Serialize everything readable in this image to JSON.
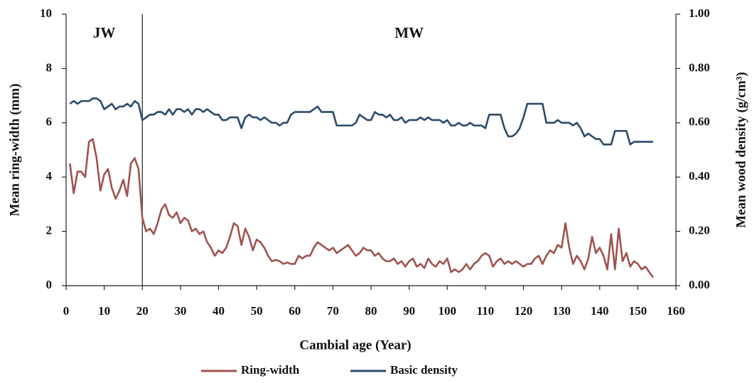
{
  "chart_data": {
    "type": "line",
    "xlabel": "Cambial age (Year)",
    "ylabel": "Mean ring-width (mm)",
    "y2label": "Mean wood density (g/cm³)",
    "annotations": [
      "JW",
      "MW"
    ],
    "vline": 20,
    "x": [
      1,
      2,
      3,
      4,
      5,
      6,
      7,
      8,
      9,
      10,
      11,
      12,
      13,
      14,
      15,
      16,
      17,
      18,
      19,
      20,
      21,
      22,
      23,
      24,
      25,
      26,
      27,
      28,
      29,
      30,
      31,
      32,
      33,
      34,
      35,
      36,
      37,
      38,
      39,
      40,
      41,
      42,
      43,
      44,
      45,
      46,
      47,
      48,
      49,
      50,
      51,
      52,
      53,
      54,
      55,
      56,
      57,
      58,
      59,
      60,
      61,
      62,
      63,
      64,
      65,
      66,
      67,
      68,
      69,
      70,
      71,
      72,
      73,
      74,
      75,
      76,
      77,
      78,
      79,
      80,
      81,
      82,
      83,
      84,
      85,
      86,
      87,
      88,
      89,
      90,
      91,
      92,
      93,
      94,
      95,
      96,
      97,
      98,
      99,
      100,
      101,
      102,
      103,
      104,
      105,
      106,
      107,
      108,
      109,
      110,
      111,
      112,
      113,
      114,
      115,
      116,
      117,
      118,
      119,
      120,
      121,
      122,
      123,
      124,
      125,
      126,
      127,
      128,
      129,
      130,
      131,
      132,
      133,
      134,
      135,
      136,
      137,
      138,
      139,
      140,
      141,
      142,
      143,
      144,
      145,
      146,
      147,
      148,
      149,
      150,
      151,
      152,
      153,
      154
    ],
    "series": [
      {
        "name": "Ring-width",
        "color": "#a0524f",
        "values": [
          4.5,
          3.4,
          4.2,
          4.2,
          4.0,
          5.3,
          5.4,
          4.7,
          3.5,
          4.1,
          4.3,
          3.6,
          3.2,
          3.5,
          3.9,
          3.3,
          4.5,
          4.7,
          4.3,
          2.5,
          2.0,
          2.1,
          1.9,
          2.3,
          2.8,
          3.0,
          2.6,
          2.5,
          2.7,
          2.3,
          2.5,
          2.4,
          2.0,
          2.1,
          1.9,
          2.0,
          1.6,
          1.4,
          1.1,
          1.3,
          1.2,
          1.4,
          1.8,
          2.3,
          2.2,
          1.5,
          2.1,
          1.8,
          1.3,
          1.7,
          1.6,
          1.4,
          1.1,
          0.9,
          0.95,
          0.9,
          0.8,
          0.85,
          0.8,
          0.8,
          1.1,
          1.0,
          1.1,
          1.1,
          1.4,
          1.6,
          1.5,
          1.4,
          1.3,
          1.4,
          1.2,
          1.3,
          1.4,
          1.5,
          1.3,
          1.1,
          1.2,
          1.4,
          1.3,
          1.3,
          1.1,
          1.2,
          1.0,
          0.9,
          0.9,
          1.0,
          0.8,
          0.9,
          0.7,
          0.9,
          1.0,
          0.7,
          0.8,
          0.65,
          1.0,
          0.8,
          0.7,
          0.9,
          0.8,
          1.0,
          0.5,
          0.6,
          0.5,
          0.6,
          0.8,
          0.6,
          0.8,
          0.9,
          1.1,
          1.2,
          1.1,
          0.7,
          0.9,
          1.0,
          0.8,
          0.9,
          0.8,
          0.9,
          0.8,
          0.7,
          0.8,
          0.8,
          1.0,
          1.1,
          0.8,
          1.1,
          1.3,
          1.2,
          1.5,
          1.4,
          2.3,
          1.4,
          0.8,
          1.1,
          0.9,
          0.6,
          1.0,
          1.8,
          1.2,
          1.4,
          1.1,
          0.6,
          1.9,
          0.6,
          2.1,
          0.9,
          1.2,
          0.7,
          0.9,
          0.8,
          0.6,
          0.7,
          0.5,
          0.3
        ]
      },
      {
        "name": "Basic density",
        "color": "#2b4a6b",
        "axis": "y2",
        "values": [
          0.67,
          0.68,
          0.67,
          0.68,
          0.68,
          0.68,
          0.69,
          0.69,
          0.68,
          0.65,
          0.66,
          0.67,
          0.65,
          0.66,
          0.66,
          0.67,
          0.66,
          0.68,
          0.67,
          0.61,
          0.62,
          0.63,
          0.63,
          0.64,
          0.64,
          0.63,
          0.65,
          0.63,
          0.65,
          0.65,
          0.64,
          0.65,
          0.63,
          0.65,
          0.65,
          0.64,
          0.65,
          0.64,
          0.63,
          0.63,
          0.61,
          0.61,
          0.62,
          0.62,
          0.62,
          0.58,
          0.62,
          0.63,
          0.62,
          0.62,
          0.61,
          0.62,
          0.61,
          0.6,
          0.6,
          0.59,
          0.6,
          0.6,
          0.63,
          0.64,
          0.64,
          0.64,
          0.64,
          0.64,
          0.65,
          0.66,
          0.64,
          0.64,
          0.64,
          0.64,
          0.59,
          0.59,
          0.59,
          0.59,
          0.59,
          0.6,
          0.63,
          0.62,
          0.61,
          0.61,
          0.64,
          0.63,
          0.63,
          0.62,
          0.63,
          0.61,
          0.61,
          0.62,
          0.6,
          0.61,
          0.61,
          0.61,
          0.62,
          0.61,
          0.62,
          0.61,
          0.61,
          0.61,
          0.6,
          0.61,
          0.59,
          0.59,
          0.6,
          0.59,
          0.59,
          0.6,
          0.59,
          0.59,
          0.59,
          0.58,
          0.63,
          0.63,
          0.63,
          0.63,
          0.58,
          0.55,
          0.55,
          0.56,
          0.58,
          0.62,
          0.67,
          0.67,
          0.67,
          0.67,
          0.67,
          0.6,
          0.6,
          0.6,
          0.61,
          0.6,
          0.6,
          0.6,
          0.59,
          0.6,
          0.58,
          0.55,
          0.56,
          0.55,
          0.54,
          0.54,
          0.52,
          0.52,
          0.52,
          0.57,
          0.57,
          0.57,
          0.57,
          0.52,
          0.53,
          0.53,
          0.53,
          0.53,
          0.53,
          0.53
        ]
      }
    ],
    "xlim": [
      0,
      160
    ],
    "xticks": [
      0,
      10,
      20,
      30,
      40,
      50,
      60,
      70,
      80,
      90,
      100,
      110,
      120,
      130,
      140,
      150,
      160
    ],
    "ylim": [
      0,
      10
    ],
    "yticks": [
      0,
      2,
      4,
      6,
      8,
      10
    ],
    "y2lim": [
      0,
      1
    ],
    "y2ticks": [
      {
        "value": 0,
        "label": "0.00"
      },
      {
        "value": 0.2,
        "label": "0.20"
      },
      {
        "value": 0.4,
        "label": "0.40"
      },
      {
        "value": 0.6,
        "label": "0.60"
      },
      {
        "value": 0.8,
        "label": "0.80"
      },
      {
        "value": 1,
        "label": "1.00"
      }
    ],
    "legend": "bottom"
  }
}
